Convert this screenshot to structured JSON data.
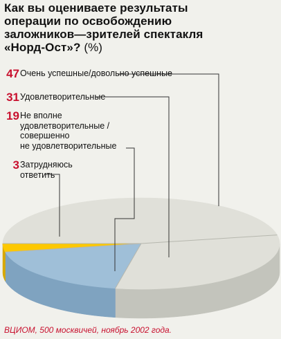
{
  "title_lines": [
    "Как вы оцениваете результаты",
    "операции по освобождению",
    "заложников—зрителей спектакля"
  ],
  "title_last": "«Норд-Ост»?",
  "title_unit": "(%)",
  "source": "ВЦИОМ, 500 москвичей, ноябрь 2002 года.",
  "colors": {
    "accent": "#c8102e",
    "slice_gray_top": "#e0e0d9",
    "slice_gray_side": "#c3c4bc",
    "slice_blue": "#9fbfd8",
    "slice_blue_side": "#7fa3c0",
    "slice_yellow": "#fdc800",
    "slice_yellow_side": "#d8a800"
  },
  "chart_data": {
    "type": "pie",
    "categories": [
      "Очень успешные/довольно успешные",
      "Удовлетворительные",
      "Не вполне удовлетворительные / совершенно не удовлетворительные",
      "Затрудняюсь ответить"
    ],
    "values": [
      47,
      31,
      19,
      3
    ],
    "labels": [
      {
        "value": "47",
        "lines": [
          "Очень успешные/довольно успешные"
        ]
      },
      {
        "value": "31",
        "lines": [
          "Удовлетворительные"
        ]
      },
      {
        "value": "19",
        "lines": [
          "Не вполне",
          "удовлетворительные /",
          "совершенно",
          "не удовлетворительные"
        ]
      },
      {
        "value": "3",
        "lines": [
          "Затрудняюсь",
          "ответить"
        ]
      }
    ]
  }
}
